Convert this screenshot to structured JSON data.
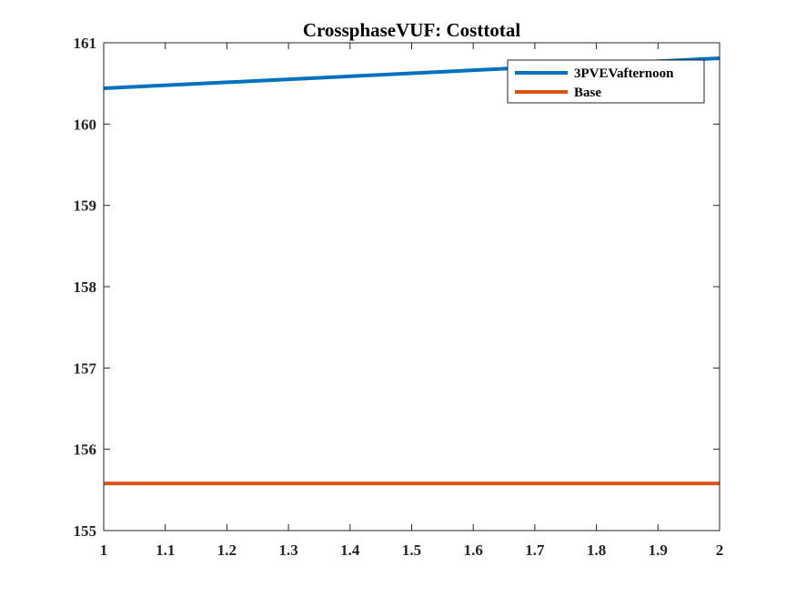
{
  "chart_data": {
    "type": "line",
    "title": "CrossphaseVUF: Costtotal",
    "xlabel": "",
    "ylabel": "",
    "xlim": [
      1,
      2
    ],
    "ylim": [
      155,
      161
    ],
    "xticks": [
      1,
      1.1,
      1.2,
      1.3,
      1.4,
      1.5,
      1.6,
      1.7,
      1.8,
      1.9,
      2
    ],
    "xtick_labels": [
      "1",
      "1.1",
      "1.2",
      "1.3",
      "1.4",
      "1.5",
      "1.6",
      "1.7",
      "1.8",
      "1.9",
      "2"
    ],
    "yticks": [
      155,
      156,
      157,
      158,
      159,
      160,
      161
    ],
    "ytick_labels": [
      "155",
      "156",
      "157",
      "158",
      "159",
      "160",
      "161"
    ],
    "grid": false,
    "legend_position": "top-right",
    "series": [
      {
        "name": "3PVEVafternoon",
        "color": "#0072BD",
        "x": [
          1,
          2
        ],
        "y": [
          160.44,
          160.81
        ]
      },
      {
        "name": "Base",
        "color": "#D95319",
        "x": [
          1,
          2
        ],
        "y": [
          155.58,
          155.58
        ]
      }
    ]
  }
}
